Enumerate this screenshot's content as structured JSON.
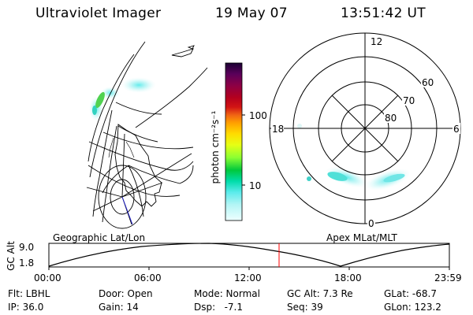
{
  "header": {
    "instrument": "Ultraviolet Imager",
    "date": "19 May 07",
    "time": "13:51:42 UT"
  },
  "colorbar": {
    "label_html": "photon cm⁻²s⁻¹",
    "tick_100": "100",
    "tick_10": "10",
    "stops": [
      "#1a0033",
      "#5a005a",
      "#8b0046",
      "#b4001e",
      "#d21414",
      "#f06414",
      "#ffa000",
      "#ffdc00",
      "#e6ff14",
      "#8cff32",
      "#00c83c",
      "#00dcaa",
      "#5aebeb",
      "#b4f5f5",
      "#eeffff"
    ]
  },
  "polar": {
    "mlt_12": "12",
    "mlt_18": "18",
    "mlt_6": "6",
    "mlt_0": "0",
    "lat_60": "60",
    "lat_70": "70",
    "lat_80": "80"
  },
  "panels": {
    "left_label": "Geographic Lat/Lon",
    "right_label": "Apex MLat/MLT"
  },
  "altplot": {
    "ylabel": "GC Alt",
    "y_top": "9.0",
    "y_bot": "1.8",
    "x_ticks": [
      "00:00",
      "06:00",
      "12:00",
      "18:00",
      "23:59"
    ],
    "current_marker_color": "#ff0000"
  },
  "status": {
    "flt": "Flt: LBHL",
    "ip": "IP: 36.0",
    "door": "Door: Open",
    "gain": "Gain: 14",
    "mode": "Mode: Normal",
    "dsp": "Dsp:   -7.1",
    "gcalt": "GC Alt: 7.3 Re",
    "seq": "Seq: 39",
    "glat": "GLat: -68.7",
    "glon": "GLon: 123.2"
  }
}
